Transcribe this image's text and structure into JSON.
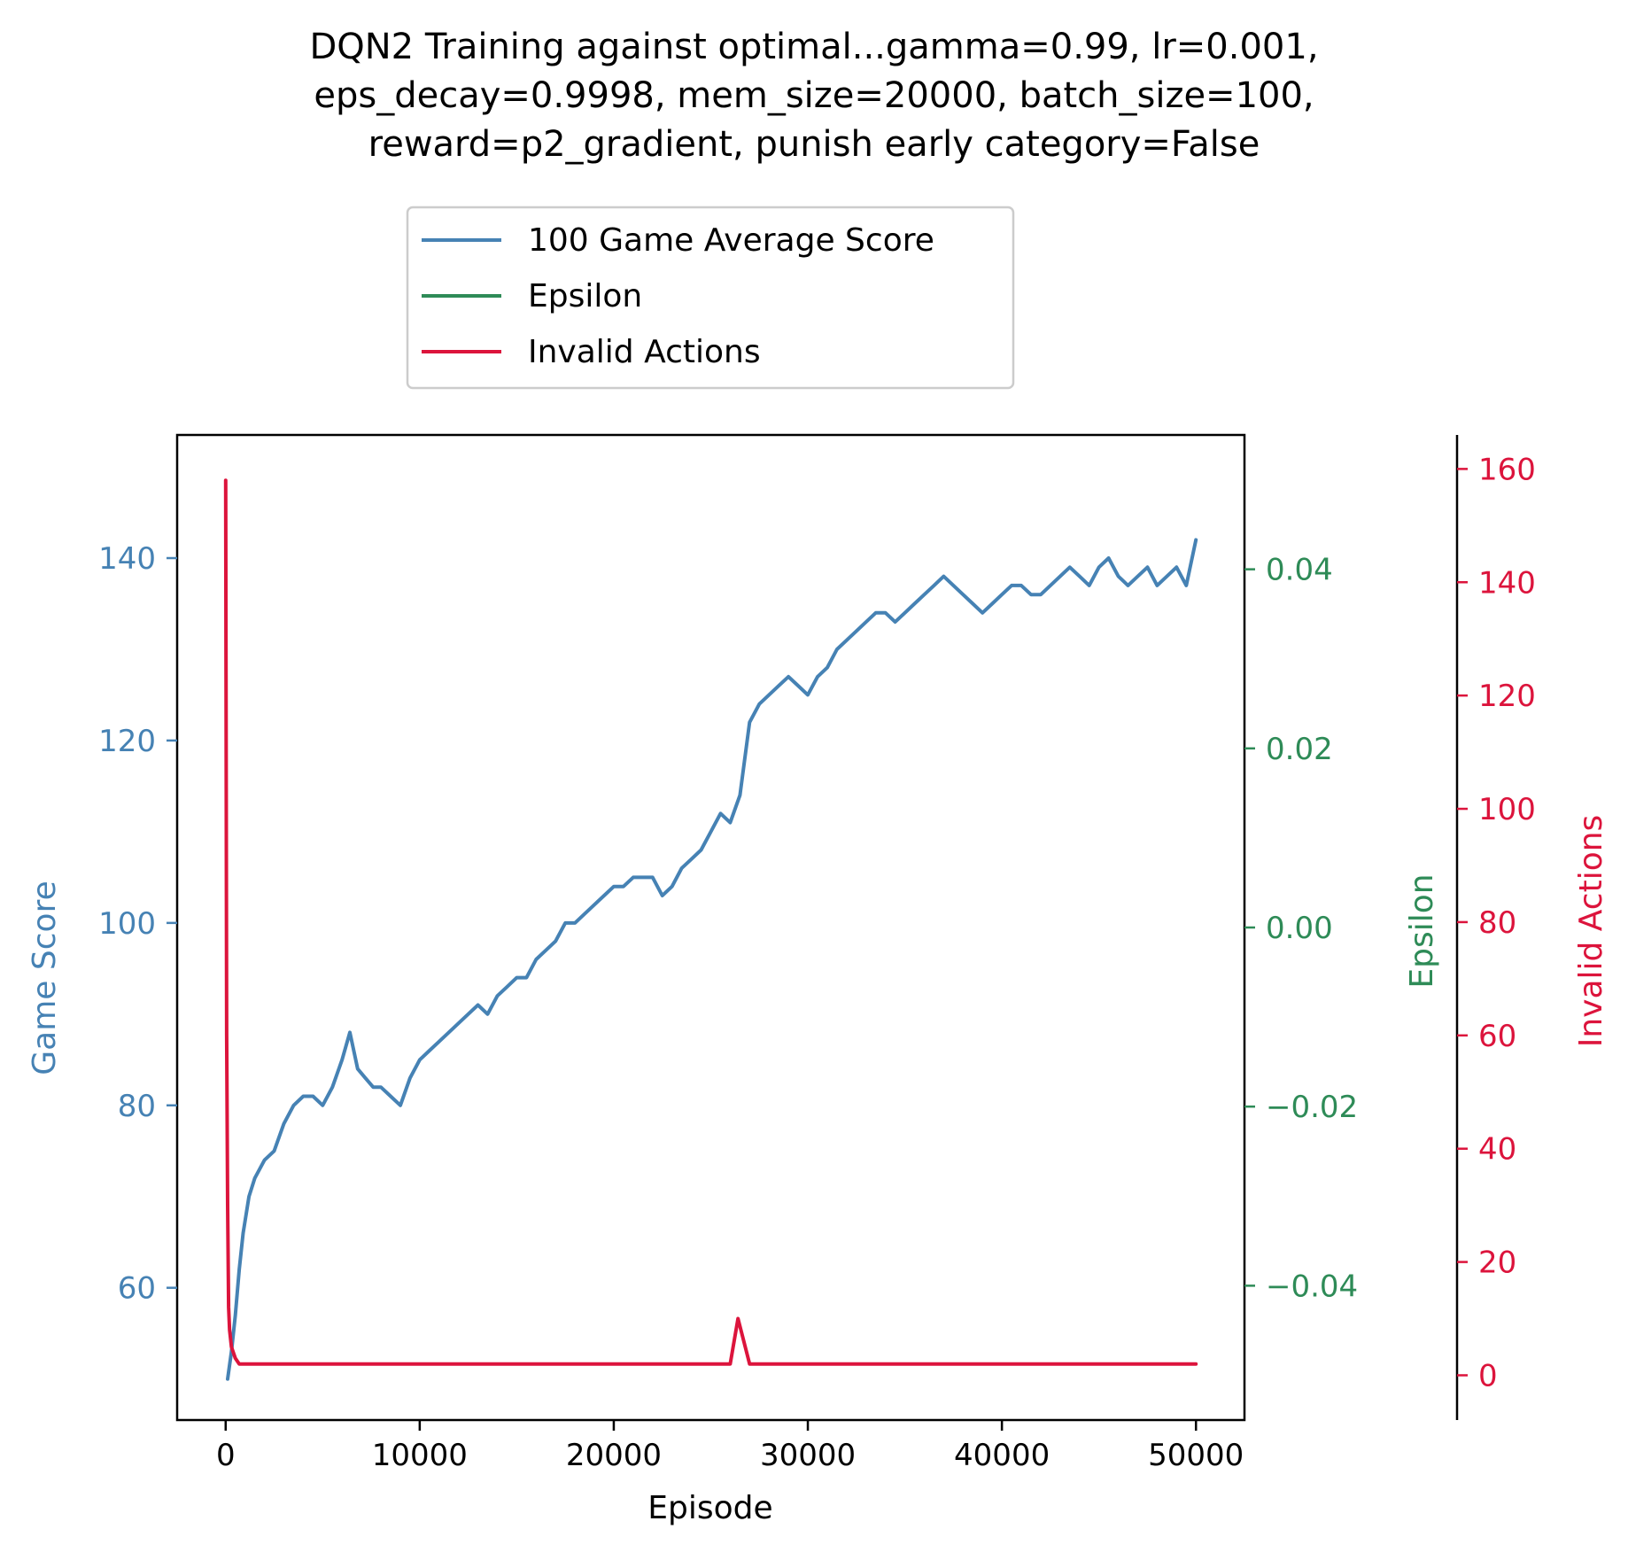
{
  "chart_data": {
    "type": "line",
    "title_lines": [
      "DQN2 Training against optimal...gamma=0.99, lr=0.001,",
      "eps_decay=0.9998, mem_size=20000, batch_size=100,",
      "reward=p2_gradient, punish early category=False"
    ],
    "xlabel": "Episode",
    "xlim": [
      -2500,
      52500
    ],
    "xticks": [
      0,
      10000,
      20000,
      30000,
      40000,
      50000
    ],
    "xtick_labels": [
      "0",
      "10000",
      "20000",
      "30000",
      "40000",
      "50000"
    ],
    "grid": false,
    "legend_position": "top-center",
    "axes": {
      "score": {
        "label": "Game Score",
        "side": "left",
        "color": "#4682b4",
        "ylim": [
          45.5,
          153.5
        ],
        "ticks": [
          60,
          80,
          100,
          120,
          140
        ],
        "tick_labels": [
          "60",
          "80",
          "100",
          "120",
          "140"
        ]
      },
      "epsilon": {
        "label": "Epsilon",
        "side": "right",
        "color": "#2e8b57",
        "ylim": [
          -0.055,
          0.055
        ],
        "ticks": [
          -0.04,
          -0.02,
          0.0,
          0.02,
          0.04
        ],
        "tick_labels": [
          "−0.04",
          "−0.02",
          "0.00",
          "0.02",
          "0.04"
        ]
      },
      "invalid": {
        "label": "Invalid Actions",
        "side": "right-outer",
        "color": "#dc143c",
        "ylim": [
          -7.9,
          166
        ],
        "ticks": [
          0,
          20,
          40,
          60,
          80,
          100,
          120,
          140,
          160
        ],
        "tick_labels": [
          "0",
          "20",
          "40",
          "60",
          "80",
          "100",
          "120",
          "140",
          "160"
        ]
      }
    },
    "series": [
      {
        "name": "100 Game Average Score",
        "axis": "score",
        "color": "#4682b4",
        "x": [
          100,
          300,
          500,
          700,
          900,
          1200,
          1500,
          2000,
          2500,
          3000,
          3500,
          4000,
          4500,
          5000,
          5500,
          6000,
          6400,
          6800,
          7200,
          7600,
          8000,
          8500,
          9000,
          9500,
          10000,
          10500,
          11000,
          11500,
          12000,
          12500,
          13000,
          13500,
          14000,
          14500,
          15000,
          15500,
          16000,
          16500,
          17000,
          17500,
          18000,
          18500,
          19000,
          19500,
          20000,
          20500,
          21000,
          21500,
          22000,
          22500,
          23000,
          23500,
          24000,
          24500,
          25000,
          25500,
          26000,
          26500,
          27000,
          27500,
          28000,
          28500,
          29000,
          29500,
          30000,
          30500,
          31000,
          31500,
          32000,
          32500,
          33000,
          33500,
          34000,
          34500,
          35000,
          35500,
          36000,
          36500,
          37000,
          37500,
          38000,
          38500,
          39000,
          39500,
          40000,
          40500,
          41000,
          41500,
          42000,
          42500,
          43000,
          43500,
          44000,
          44500,
          45000,
          45500,
          46000,
          46500,
          47000,
          47500,
          48000,
          48500,
          49000,
          49500,
          50000
        ],
        "values": [
          50,
          53,
          57,
          62,
          66,
          70,
          72,
          74,
          75,
          78,
          80,
          81,
          81,
          80,
          82,
          85,
          88,
          84,
          83,
          82,
          82,
          81,
          80,
          83,
          85,
          86,
          87,
          88,
          89,
          90,
          91,
          90,
          92,
          93,
          94,
          94,
          96,
          97,
          98,
          100,
          100,
          101,
          102,
          103,
          104,
          104,
          105,
          105,
          105,
          103,
          104,
          106,
          107,
          108,
          110,
          112,
          111,
          114,
          122,
          124,
          125,
          126,
          127,
          126,
          125,
          127,
          128,
          130,
          131,
          132,
          133,
          134,
          134,
          133,
          134,
          135,
          136,
          137,
          138,
          137,
          136,
          135,
          134,
          135,
          136,
          137,
          137,
          136,
          136,
          137,
          138,
          139,
          138,
          137,
          139,
          140,
          138,
          137,
          138,
          139,
          137,
          138,
          139,
          137,
          142
        ]
      },
      {
        "name": "Epsilon",
        "axis": "epsilon",
        "color": "#2e8b57",
        "x": [],
        "values": []
      },
      {
        "name": "Invalid Actions",
        "axis": "invalid",
        "color": "#dc143c",
        "x": [
          0,
          50,
          100,
          150,
          200,
          300,
          400,
          500,
          700,
          1000,
          1500,
          2000,
          3000,
          4000,
          5000,
          6000,
          7000,
          8000,
          9000,
          10000,
          11000,
          12000,
          13000,
          14000,
          15000,
          16000,
          17000,
          18000,
          19000,
          20000,
          21000,
          22000,
          23000,
          24000,
          25000,
          26000,
          26400,
          27000,
          28000,
          29000,
          30000,
          31000,
          32000,
          33000,
          34000,
          35000,
          36000,
          37000,
          38000,
          39000,
          40000,
          41000,
          42000,
          43000,
          44000,
          45000,
          46000,
          47000,
          48000,
          49000,
          50000
        ],
        "values": [
          158,
          60,
          30,
          12,
          8,
          5,
          4,
          3,
          2,
          2,
          2,
          2,
          2,
          2,
          2,
          2,
          2,
          2,
          2,
          2,
          2,
          2,
          2,
          2,
          2,
          2,
          2,
          2,
          2,
          2,
          2,
          2,
          2,
          2,
          2,
          2,
          10,
          2,
          2,
          2,
          2,
          2,
          2,
          2,
          2,
          2,
          2,
          2,
          2,
          2,
          2,
          2,
          2,
          2,
          2,
          2,
          2,
          2,
          2,
          2,
          2
        ]
      }
    ]
  }
}
